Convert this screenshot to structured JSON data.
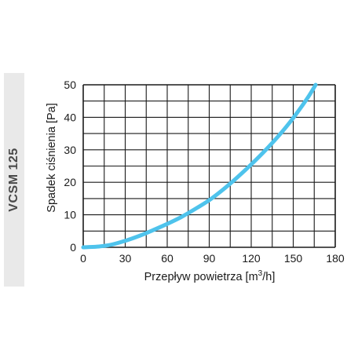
{
  "side_label": "VCSM 125",
  "colors": {
    "curve": "#4ec3ec",
    "grid": "#1a1a1a",
    "band": "#e9e9e9"
  },
  "chart_data": {
    "type": "line",
    "title": "",
    "xlabel_prefix": "Przepływ powietrza [m",
    "xlabel_sup": "3",
    "xlabel_suffix": "/h]",
    "ylabel": "Spadek ciśnienia [Pa]",
    "xlim": [
      0,
      180
    ],
    "ylim": [
      0,
      50
    ],
    "xticks": [
      0,
      30,
      60,
      90,
      120,
      150,
      180
    ],
    "yticks": [
      0,
      10,
      20,
      30,
      40,
      50
    ],
    "grid": true,
    "grid_x_step": 15,
    "grid_y_step": 5,
    "series": [
      {
        "x": [
          0,
          10,
          20,
          30,
          40,
          50,
          60,
          70,
          80,
          90,
          100,
          110,
          120,
          130,
          140,
          150,
          160,
          166
        ],
        "y": [
          0,
          0.2,
          0.8,
          2.0,
          3.5,
          5.3,
          7.2,
          9.3,
          11.8,
          14.5,
          17.8,
          21.5,
          25.5,
          29.8,
          34.5,
          39.8,
          45.8,
          50
        ]
      }
    ]
  }
}
